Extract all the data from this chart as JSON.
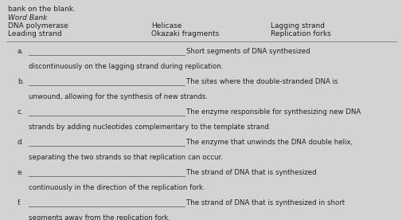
{
  "bg_color": "#d3d3d3",
  "header_line1": "bank on the blank.",
  "word_bank_label": "Word Bank",
  "col1": [
    "DNA polymerase",
    "Leading strand"
  ],
  "col2": [
    "Helicase",
    "Okazaki fragments"
  ],
  "col3": [
    "Lagging strand",
    "Replication forks"
  ],
  "items": [
    {
      "letter": "a.",
      "line_text": "Short segments of DNA synthesized",
      "line2_text": "discontinuously on the lagging strand during replication."
    },
    {
      "letter": "b.",
      "line_text": "The sites where the double-stranded DNA is",
      "line2_text": "unwound, allowing for the synthesis of new strands."
    },
    {
      "letter": "c.",
      "line_text": "The enzyme responsible for synthesizing new DNA",
      "line2_text": "strands by adding nucleotides complementary to the template strand."
    },
    {
      "letter": "d.",
      "line_text": "The enzyme that unwinds the DNA double helix,",
      "line2_text": "separating the two strands so that replication can occur."
    },
    {
      "letter": "e.",
      "line_text": "The strand of DNA that is synthesized",
      "line2_text": "continuously in the direction of the replication fork."
    },
    {
      "letter": "f.",
      "line_text": "The strand of DNA that is synthesized in short",
      "line2_text": "segments away from the replication fork."
    }
  ],
  "font_size_header": 6.5,
  "font_size_word_bank": 6.5,
  "font_size_items": 6.2,
  "text_color": "#222222",
  "line_color": "#777777"
}
